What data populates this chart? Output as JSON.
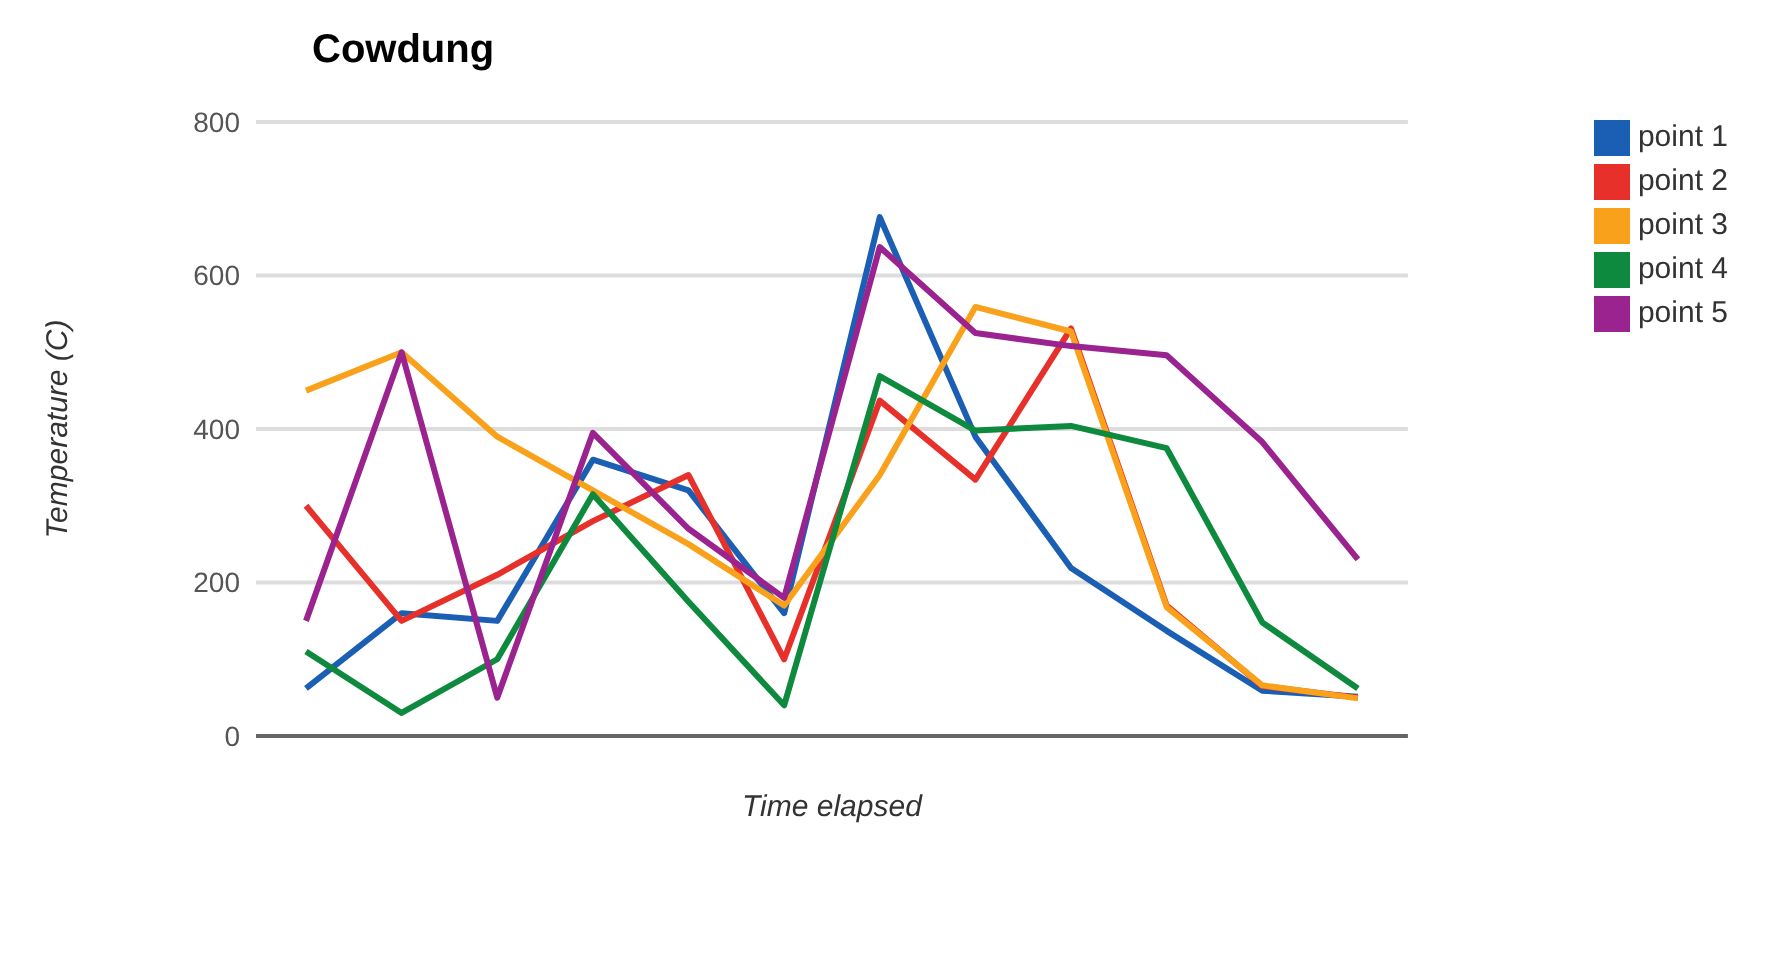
{
  "chart_data": {
    "type": "line",
    "title": "Cowdung",
    "xlabel": "Time elapsed",
    "ylabel": "Temperature (C)",
    "categories": [
      null,
      null,
      null,
      null,
      null,
      null,
      null,
      null,
      null,
      null,
      null,
      null
    ],
    "series": [
      {
        "name": "point 1",
        "color": "#1a5fb4",
        "values": [
          62,
          160,
          150,
          360,
          320,
          160,
          676,
          390,
          219,
          137,
          59,
          51
        ]
      },
      {
        "name": "point 2",
        "color": "#e8302a",
        "values": [
          300,
          150,
          210,
          280,
          340,
          100,
          437,
          334,
          531,
          170,
          65,
          50
        ]
      },
      {
        "name": "point 3",
        "color": "#f9a11b",
        "values": [
          450,
          500,
          390,
          320,
          250,
          170,
          340,
          559,
          527,
          168,
          66,
          49
        ]
      },
      {
        "name": "point 4",
        "color": "#0e8a3e",
        "values": [
          110,
          30,
          100,
          315,
          175,
          40,
          469,
          398,
          404,
          375,
          148,
          62
        ]
      },
      {
        "name": "point 5",
        "color": "#9b2390",
        "values": [
          150,
          500,
          50,
          395,
          270,
          180,
          637,
          525,
          508,
          496,
          383,
          230
        ]
      }
    ],
    "ylim": [
      0,
      800
    ],
    "yticks": [
      0,
      200,
      400,
      600,
      800
    ],
    "grid": "y",
    "legend": "top right",
    "marker": "none",
    "line_style": "solid"
  }
}
